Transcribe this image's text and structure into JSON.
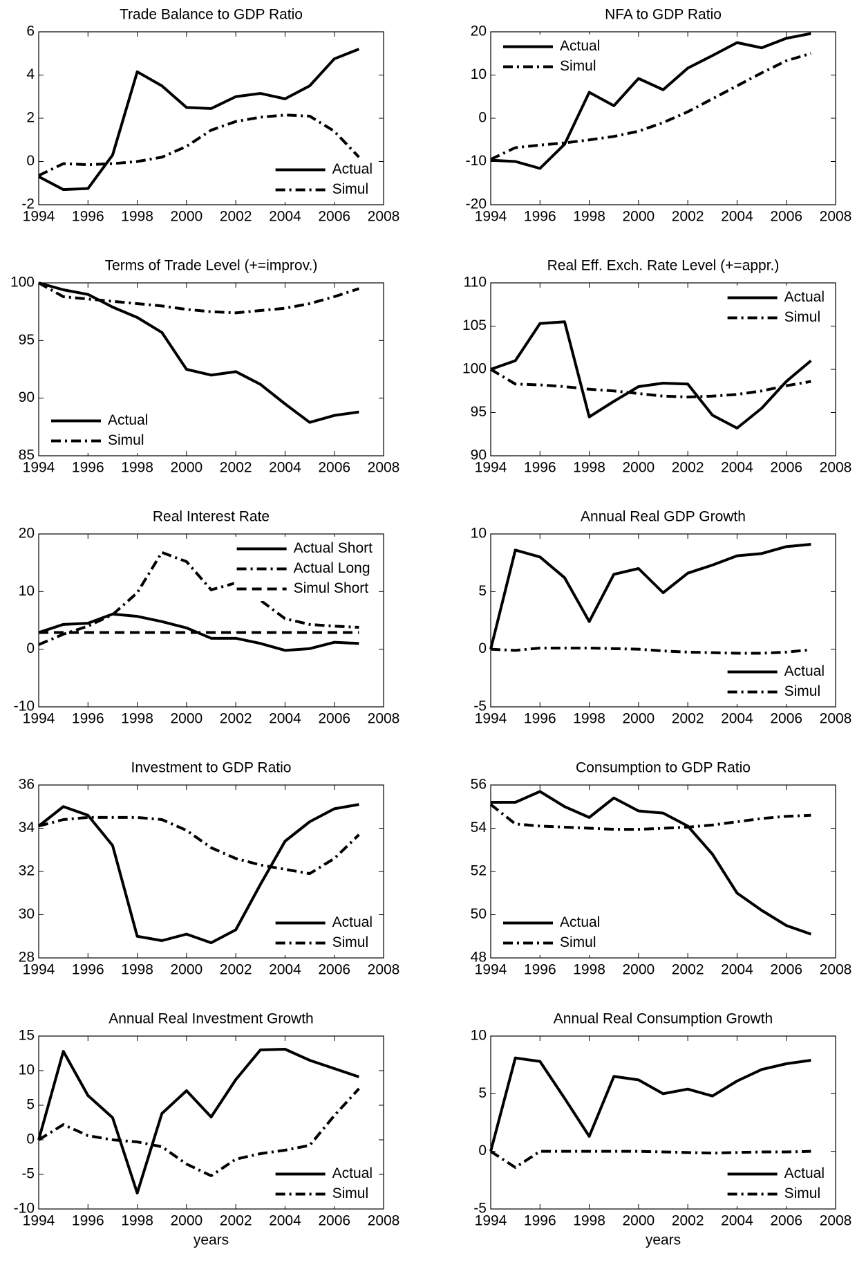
{
  "chart_data": [
    {
      "type": "line",
      "title": "Trade Balance to GDP Ratio",
      "x": [
        1994,
        1995,
        1996,
        1997,
        1998,
        1999,
        2000,
        2001,
        2002,
        2003,
        2004,
        2005,
        2006,
        2007
      ],
      "xlim": [
        1994,
        2008
      ],
      "xticks": [
        1994,
        1996,
        1998,
        2000,
        2002,
        2004,
        2006,
        2008
      ],
      "ylim": [
        -2,
        6
      ],
      "yticks": [
        -2,
        0,
        2,
        4,
        6
      ],
      "legend": "lower right",
      "series": [
        {
          "name": "Actual",
          "color": "#000000",
          "dash": "solid",
          "values": [
            -0.7,
            -1.3,
            -1.25,
            0.3,
            4.15,
            3.5,
            2.5,
            2.45,
            3.0,
            3.15,
            2.9,
            3.5,
            4.75,
            5.2
          ]
        },
        {
          "name": "Simul",
          "color": "#000000",
          "dash": "dashdot",
          "values": [
            -0.65,
            -0.1,
            -0.15,
            -0.1,
            0.0,
            0.2,
            0.7,
            1.45,
            1.85,
            2.05,
            2.15,
            2.1,
            1.4,
            0.2
          ]
        }
      ]
    },
    {
      "type": "line",
      "title": "NFA to GDP Ratio",
      "x": [
        1994,
        1995,
        1996,
        1997,
        1998,
        1999,
        2000,
        2001,
        2002,
        2003,
        2004,
        2005,
        2006,
        2007
      ],
      "xlim": [
        1994,
        2008
      ],
      "xticks": [
        1994,
        1996,
        1998,
        2000,
        2002,
        2004,
        2006,
        2008
      ],
      "ylim": [
        -20,
        20
      ],
      "yticks": [
        -20,
        -10,
        0,
        10,
        20
      ],
      "legend": "upper left",
      "series": [
        {
          "name": "Actual",
          "color": "#000000",
          "dash": "solid",
          "values": [
            -9.7,
            -10,
            -11.6,
            -6,
            6,
            2.9,
            9.2,
            6.6,
            11.6,
            14.5,
            17.5,
            16.3,
            18.5,
            19.6
          ]
        },
        {
          "name": "Simul",
          "color": "#000000",
          "dash": "dashdot",
          "values": [
            -9.5,
            -6.8,
            -6.2,
            -5.7,
            -5,
            -4.2,
            -3,
            -1,
            1.5,
            4.5,
            7.5,
            10.5,
            13.3,
            15
          ]
        }
      ]
    },
    {
      "type": "line",
      "title": "Terms of Trade Level (+=improv.)",
      "x": [
        1994,
        1995,
        1996,
        1997,
        1998,
        1999,
        2000,
        2001,
        2002,
        2003,
        2004,
        2005,
        2006,
        2007
      ],
      "xlim": [
        1994,
        2008
      ],
      "xticks": [
        1994,
        1996,
        1998,
        2000,
        2002,
        2004,
        2006,
        2008
      ],
      "ylim": [
        85,
        100
      ],
      "yticks": [
        85,
        90,
        95,
        100
      ],
      "legend": "lower left",
      "series": [
        {
          "name": "Actual",
          "color": "#000000",
          "dash": "solid",
          "values": [
            100,
            99.4,
            99,
            97.9,
            97,
            95.7,
            92.5,
            92,
            92.3,
            91.2,
            89.5,
            87.9,
            88.5,
            88.8
          ]
        },
        {
          "name": "Simul",
          "color": "#000000",
          "dash": "dashdot",
          "values": [
            100,
            98.8,
            98.6,
            98.4,
            98.2,
            98,
            97.7,
            97.5,
            97.4,
            97.6,
            97.8,
            98.2,
            98.8,
            99.5
          ]
        }
      ]
    },
    {
      "type": "line",
      "title": "Real Eff. Exch. Rate Level (+=appr.)",
      "x": [
        1994,
        1995,
        1996,
        1997,
        1998,
        1999,
        2000,
        2001,
        2002,
        2003,
        2004,
        2005,
        2006,
        2007
      ],
      "xlim": [
        1994,
        2008
      ],
      "xticks": [
        1994,
        1996,
        1998,
        2000,
        2002,
        2004,
        2006,
        2008
      ],
      "ylim": [
        90,
        110
      ],
      "yticks": [
        90,
        95,
        100,
        105,
        110
      ],
      "legend": "upper right",
      "series": [
        {
          "name": "Actual",
          "color": "#000000",
          "dash": "solid",
          "values": [
            100,
            101,
            105.3,
            105.5,
            94.5,
            96.3,
            98,
            98.4,
            98.3,
            94.7,
            93.2,
            95.5,
            98.6,
            101
          ]
        },
        {
          "name": "Simul",
          "color": "#000000",
          "dash": "dashdot",
          "values": [
            100,
            98.3,
            98.2,
            98,
            97.7,
            97.5,
            97.2,
            96.9,
            96.8,
            96.9,
            97.1,
            97.5,
            98.1,
            98.6
          ]
        }
      ]
    },
    {
      "type": "line",
      "title": "Real Interest Rate",
      "x": [
        1994,
        1995,
        1996,
        1997,
        1998,
        1999,
        2000,
        2001,
        2002,
        2003,
        2004,
        2005,
        2006,
        2007
      ],
      "xlim": [
        1994,
        2008
      ],
      "xticks": [
        1994,
        1996,
        1998,
        2000,
        2002,
        2004,
        2006,
        2008
      ],
      "ylim": [
        -10,
        20
      ],
      "yticks": [
        -10,
        0,
        10,
        20
      ],
      "legend": "upper right",
      "series": [
        {
          "name": "Actual Short",
          "color": "#000000",
          "dash": "solid",
          "values": [
            2.9,
            4.3,
            4.5,
            6.1,
            5.7,
            4.8,
            3.7,
            1.9,
            1.9,
            1.0,
            -0.2,
            0.1,
            1.2,
            1.0
          ]
        },
        {
          "name": "Actual Long",
          "color": "#000000",
          "dash": "dashdot",
          "values": [
            0.8,
            2.6,
            4.0,
            6.0,
            9.8,
            16.8,
            15.2,
            10.3,
            11.5,
            8.5,
            5.3,
            4.3,
            4.0,
            3.8
          ]
        },
        {
          "name": "Simul Short",
          "color": "#000000",
          "dash": "dashed",
          "values": [
            2.9,
            2.9,
            2.9,
            2.9,
            2.9,
            2.9,
            2.9,
            2.9,
            2.9,
            2.9,
            2.9,
            2.9,
            2.9,
            2.9
          ]
        }
      ]
    },
    {
      "type": "line",
      "title": "Annual Real GDP Growth",
      "x": [
        1994,
        1995,
        1996,
        1997,
        1998,
        1999,
        2000,
        2001,
        2002,
        2003,
        2004,
        2005,
        2006,
        2007
      ],
      "xlim": [
        1994,
        2008
      ],
      "xticks": [
        1994,
        1996,
        1998,
        2000,
        2002,
        2004,
        2006,
        2008
      ],
      "ylim": [
        -5,
        10
      ],
      "yticks": [
        -5,
        0,
        5,
        10
      ],
      "legend": "lower right",
      "series": [
        {
          "name": "Actual",
          "color": "#000000",
          "dash": "solid",
          "values": [
            0,
            8.6,
            8.0,
            6.2,
            2.4,
            6.5,
            7.0,
            4.9,
            6.6,
            7.3,
            8.1,
            8.3,
            8.9,
            9.1
          ]
        },
        {
          "name": "Simul",
          "color": "#000000",
          "dash": "dashdot",
          "values": [
            0,
            -0.1,
            0.1,
            0.1,
            0.1,
            0.05,
            0,
            -0.15,
            -0.25,
            -0.3,
            -0.35,
            -0.35,
            -0.25,
            -0.05
          ]
        }
      ]
    },
    {
      "type": "line",
      "title": "Investment to GDP Ratio",
      "x": [
        1994,
        1995,
        1996,
        1997,
        1998,
        1999,
        2000,
        2001,
        2002,
        2003,
        2004,
        2005,
        2006,
        2007
      ],
      "xlim": [
        1994,
        2008
      ],
      "xticks": [
        1994,
        1996,
        1998,
        2000,
        2002,
        2004,
        2006,
        2008
      ],
      "ylim": [
        28,
        36
      ],
      "yticks": [
        28,
        30,
        32,
        34,
        36
      ],
      "legend": "lower right",
      "series": [
        {
          "name": "Actual",
          "color": "#000000",
          "dash": "solid",
          "values": [
            34.1,
            35,
            34.6,
            33.2,
            29,
            28.8,
            29.1,
            28.7,
            29.3,
            31.4,
            33.4,
            34.3,
            34.9,
            35.1
          ]
        },
        {
          "name": "Simul",
          "color": "#000000",
          "dash": "dashdot",
          "values": [
            34.1,
            34.4,
            34.5,
            34.5,
            34.5,
            34.4,
            33.9,
            33.1,
            32.6,
            32.3,
            32.1,
            31.9,
            32.6,
            33.7
          ]
        }
      ]
    },
    {
      "type": "line",
      "title": "Consumption to GDP Ratio",
      "x": [
        1994,
        1995,
        1996,
        1997,
        1998,
        1999,
        2000,
        2001,
        2002,
        2003,
        2004,
        2005,
        2006,
        2007
      ],
      "xlim": [
        1994,
        2008
      ],
      "xticks": [
        1994,
        1996,
        1998,
        2000,
        2002,
        2004,
        2006,
        2008
      ],
      "ylim": [
        48,
        56
      ],
      "yticks": [
        48,
        50,
        52,
        54,
        56
      ],
      "legend": "lower left",
      "series": [
        {
          "name": "Actual",
          "color": "#000000",
          "dash": "solid",
          "values": [
            55.2,
            55.2,
            55.7,
            55,
            54.5,
            55.4,
            54.8,
            54.7,
            54.1,
            52.8,
            51,
            50.2,
            49.5,
            49.1
          ]
        },
        {
          "name": "Simul",
          "color": "#000000",
          "dash": "dashdot",
          "values": [
            55.1,
            54.2,
            54.1,
            54.05,
            54,
            53.95,
            53.95,
            54,
            54.05,
            54.15,
            54.3,
            54.45,
            54.55,
            54.6
          ]
        }
      ]
    },
    {
      "type": "line",
      "title": "Annual Real Investment Growth",
      "x_label": "years",
      "x": [
        1994,
        1995,
        1996,
        1997,
        1998,
        1999,
        2000,
        2001,
        2002,
        2003,
        2004,
        2005,
        2006,
        2007
      ],
      "xlim": [
        1994,
        2008
      ],
      "xticks": [
        1994,
        1996,
        1998,
        2000,
        2002,
        2004,
        2006,
        2008
      ],
      "ylim": [
        -10,
        15
      ],
      "yticks": [
        -10,
        -5,
        0,
        5,
        10,
        15
      ],
      "legend": "lower right",
      "series": [
        {
          "name": "Actual",
          "color": "#000000",
          "dash": "solid",
          "values": [
            0,
            12.8,
            6.4,
            3.2,
            -7.7,
            3.8,
            7.1,
            3.3,
            8.7,
            13,
            13.1,
            11.5,
            10.3,
            9.1
          ]
        },
        {
          "name": "Simul",
          "color": "#000000",
          "dash": "dashdot",
          "values": [
            0,
            2.2,
            0.6,
            0,
            -0.3,
            -1,
            -3.5,
            -5.2,
            -2.8,
            -2,
            -1.5,
            -0.8,
            3.5,
            7.4
          ]
        }
      ]
    },
    {
      "type": "line",
      "title": "Annual Real Consumption Growth",
      "x_label": "years",
      "x": [
        1994,
        1995,
        1996,
        1997,
        1998,
        1999,
        2000,
        2001,
        2002,
        2003,
        2004,
        2005,
        2006,
        2007
      ],
      "xlim": [
        1994,
        2008
      ],
      "xticks": [
        1994,
        1996,
        1998,
        2000,
        2002,
        2004,
        2006,
        2008
      ],
      "ylim": [
        -5,
        10
      ],
      "yticks": [
        -5,
        0,
        5,
        10
      ],
      "legend": "lower right",
      "series": [
        {
          "name": "Actual",
          "color": "#000000",
          "dash": "solid",
          "values": [
            0,
            8.1,
            7.8,
            4.6,
            1.3,
            6.5,
            6.2,
            5,
            5.4,
            4.8,
            6.1,
            7.1,
            7.6,
            7.9
          ]
        },
        {
          "name": "Simul",
          "color": "#000000",
          "dash": "dashdot",
          "values": [
            0,
            -1.4,
            0,
            0,
            0,
            0,
            0,
            -0.05,
            -0.1,
            -0.15,
            -0.1,
            -0.05,
            -0.05,
            0
          ]
        }
      ]
    }
  ]
}
